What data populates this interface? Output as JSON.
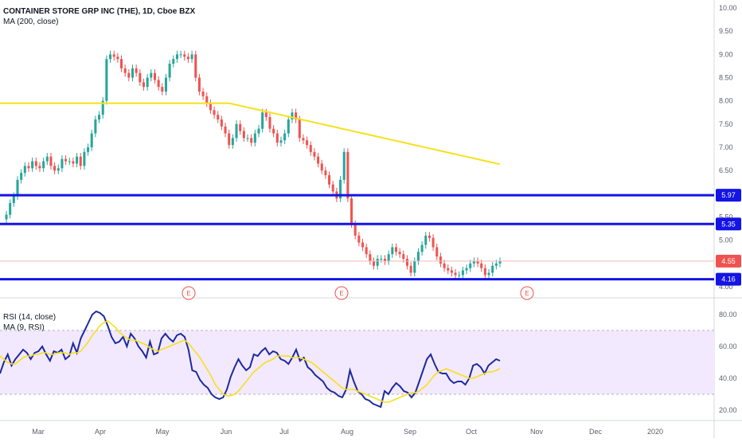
{
  "chart_data": [
    {
      "type": "candlestick",
      "title": "CONTAINER STORE GRP INC (THE), 1D, Cboe BZX",
      "indicator_label": "MA (200, close)",
      "y_ticks": [
        "4.00",
        "4.50",
        "5.00",
        "5.50",
        "6.00",
        "6.50",
        "7.00",
        "7.50",
        "8.00",
        "8.50",
        "9.00",
        "9.50",
        "10.00"
      ],
      "ylim": [
        4.0,
        10.0
      ],
      "x_ticks": [
        "Mar",
        "Apr",
        "May",
        "Jun",
        "Jul",
        "Aug",
        "Sep",
        "Oct",
        "Nov",
        "Dec",
        "2020"
      ],
      "price_close": [
        5.55,
        5.8,
        5.95,
        6.3,
        6.45,
        6.6,
        6.55,
        6.7,
        6.6,
        6.55,
        6.7,
        6.8,
        6.6,
        6.5,
        6.55,
        6.75,
        6.7,
        6.7,
        6.65,
        6.8,
        6.6,
        6.9,
        7.0,
        7.3,
        7.6,
        7.7,
        8.0,
        8.9,
        9.0,
        8.95,
        8.9,
        8.7,
        8.6,
        8.5,
        8.7,
        8.6,
        8.4,
        8.3,
        8.5,
        8.6,
        8.45,
        8.3,
        8.2,
        8.5,
        8.8,
        8.9,
        9.0,
        9.0,
        8.95,
        8.9,
        9.0,
        8.5,
        8.2,
        8.1,
        7.95,
        7.8,
        7.7,
        7.6,
        7.45,
        7.3,
        7.05,
        7.2,
        7.5,
        7.35,
        7.2,
        7.2,
        7.1,
        7.3,
        7.4,
        7.75,
        7.65,
        7.4,
        7.3,
        7.1,
        7.15,
        7.3,
        7.6,
        7.75,
        7.6,
        7.2,
        7.15,
        7.05,
        6.9,
        6.8,
        6.65,
        6.5,
        6.4,
        6.2,
        6.05,
        5.9,
        6.3,
        6.9,
        5.9,
        5.35,
        5.1,
        4.95,
        4.85,
        4.7,
        4.55,
        4.45,
        4.6,
        4.6,
        4.55,
        4.7,
        4.85,
        4.75,
        4.7,
        4.6,
        4.45,
        4.3,
        4.55,
        4.75,
        4.9,
        5.1,
        5.05,
        4.85,
        4.65,
        4.5,
        4.4,
        4.35,
        4.3,
        4.25,
        4.25,
        4.35,
        4.4,
        4.5,
        4.55,
        4.5,
        4.4,
        4.25,
        4.3,
        4.45,
        4.5,
        4.55
      ],
      "price_axis_labels": [
        {
          "label": "5.97",
          "value": 5.97,
          "color": "#1414e6"
        },
        {
          "label": "5.35",
          "value": 5.35,
          "color": "#1414e6"
        },
        {
          "label": "4.55",
          "value": 4.55,
          "color": "#ef5350"
        },
        {
          "label": "4.16",
          "value": 4.16,
          "color": "#1414e6"
        }
      ],
      "horizontal_lines": [
        5.97,
        5.35,
        4.16
      ],
      "earnings_marker": "E",
      "colors": {
        "up": "#26a69a",
        "down": "#ef5350",
        "ma": "#f5e11c",
        "levels": "#1414e6",
        "last_price": "#ef5350"
      }
    },
    {
      "type": "line",
      "title": "RSI (14, close)",
      "subtitle": "MA (9, RSI)",
      "y_ticks": [
        "20.00",
        "40.00",
        "60.00",
        "80.00"
      ],
      "ylim": [
        15,
        85
      ],
      "band": [
        30,
        70
      ],
      "series": [
        {
          "name": "RSI (14, close)",
          "color": "#1c2aa0",
          "values": [
            43,
            50,
            55,
            48,
            52,
            55,
            58,
            56,
            52,
            56,
            57,
            60,
            55,
            51,
            57,
            56,
            58,
            52,
            54,
            62,
            56,
            65,
            70,
            75,
            80,
            82,
            81,
            79,
            73,
            66,
            62,
            63,
            66,
            60,
            68,
            65,
            60,
            57,
            53,
            63,
            55,
            56,
            65,
            68,
            65,
            63,
            67,
            68,
            66,
            58,
            45,
            44,
            39,
            36,
            34,
            30,
            28,
            27,
            28,
            33,
            41,
            47,
            52,
            48,
            45,
            47,
            55,
            54,
            57,
            59,
            55,
            57,
            56,
            52,
            51,
            49,
            53,
            58,
            51,
            53,
            47,
            45,
            42,
            40,
            38,
            34,
            32,
            31,
            29,
            28,
            33,
            45,
            38,
            32,
            30,
            27,
            26,
            24,
            23,
            22,
            32,
            30,
            34,
            37,
            35,
            32,
            31,
            28,
            31,
            38,
            45,
            52,
            55,
            49,
            44,
            43,
            43,
            39,
            37,
            38,
            38,
            36,
            40,
            48,
            49,
            47,
            43,
            48,
            50,
            52,
            51
          ]
        },
        {
          "name": "MA (9, RSI)",
          "color": "#f5e11c",
          "values": [
            54,
            52,
            50,
            49,
            49,
            51,
            53,
            54,
            54,
            55,
            55,
            56,
            56,
            55,
            55,
            56,
            56,
            56,
            55,
            56,
            56,
            57,
            60,
            63,
            67,
            70,
            73,
            75,
            76,
            74,
            72,
            69,
            67,
            65,
            64,
            64,
            63,
            62,
            61,
            59,
            58,
            57,
            58,
            59,
            60,
            61,
            62,
            63,
            64,
            62,
            59,
            56,
            53,
            49,
            45,
            41,
            36,
            33,
            30,
            29,
            29,
            30,
            32,
            35,
            38,
            41,
            44,
            46,
            48,
            50,
            51,
            52,
            54,
            54,
            54,
            54,
            53,
            53,
            53,
            52,
            51,
            50,
            48,
            46,
            44,
            42,
            40,
            38,
            36,
            34,
            33,
            33,
            33,
            32,
            31,
            30,
            29,
            28,
            27,
            26,
            25,
            25,
            26,
            27,
            28,
            29,
            30,
            31,
            31,
            32,
            34,
            36,
            39,
            42,
            44,
            45,
            46,
            45,
            44,
            43,
            42,
            41,
            40,
            40,
            41,
            42,
            43,
            44,
            44,
            45,
            46
          ]
        }
      ]
    }
  ]
}
